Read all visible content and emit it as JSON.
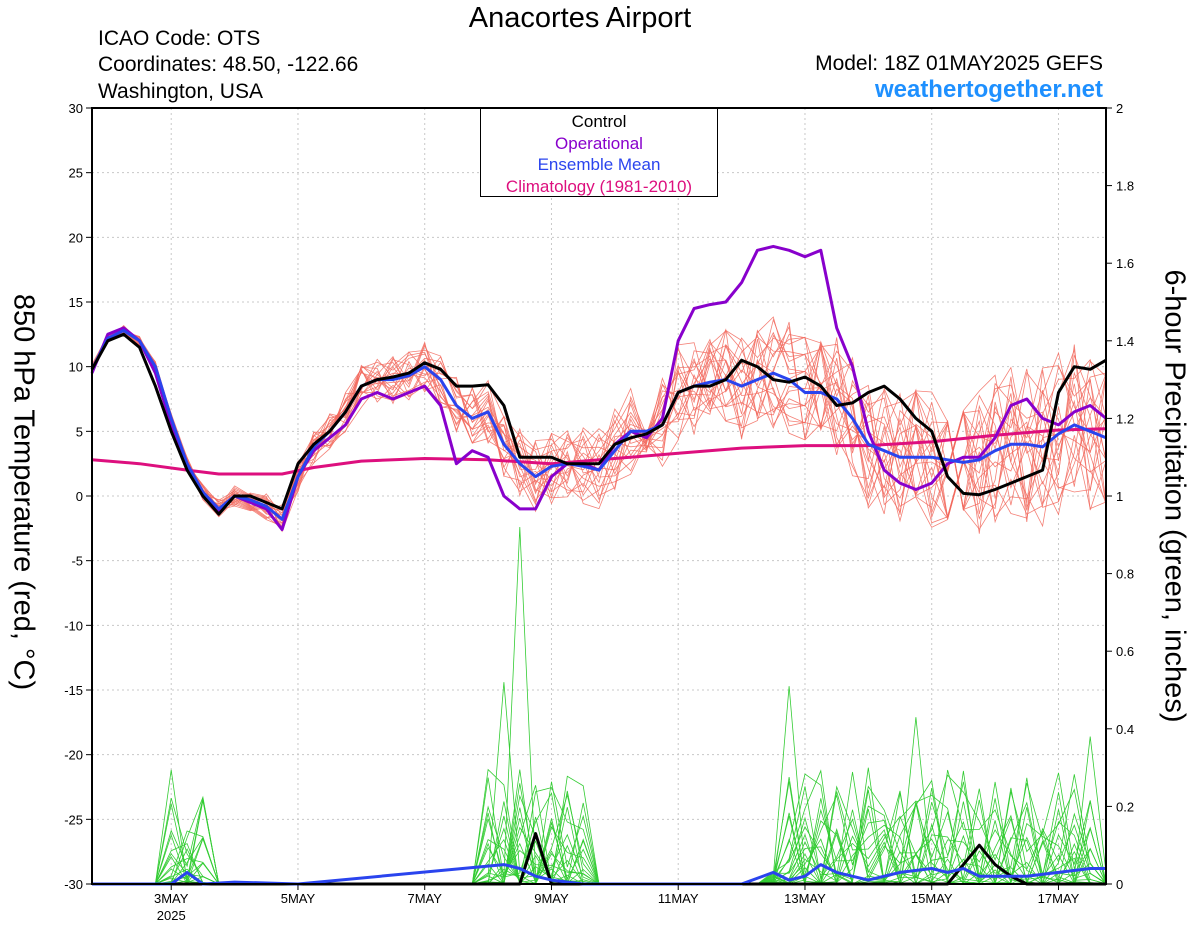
{
  "header": {
    "title": "Anacortes Airport",
    "icao": "ICAO Code: OTS",
    "coordinates": "Coordinates: 48.50, -122.66",
    "region": "Washington, USA",
    "model": "Model: 18Z 01MAY2025 GEFS",
    "site": "weathertogether.net"
  },
  "legend": {
    "items": [
      {
        "label": "Control",
        "color": "#000000"
      },
      {
        "label": "Operational",
        "color": "#8800cc"
      },
      {
        "label": "Ensemble Mean",
        "color": "#2a44ee"
      },
      {
        "label": "Climatology (1981-2010)",
        "color": "#dd0f7e"
      }
    ]
  },
  "chart_data": {
    "type": "line",
    "x_unit": "day of May 2025 (18Z May 1 start, 6-hourly)",
    "xlim": [
      1.75,
      17.75
    ],
    "x_ticks": [
      {
        "x": 3,
        "label": "3MAY",
        "sub": "2025"
      },
      {
        "x": 5,
        "label": "5MAY"
      },
      {
        "x": 7,
        "label": "7MAY"
      },
      {
        "x": 9,
        "label": "9MAY"
      },
      {
        "x": 11,
        "label": "11MAY"
      },
      {
        "x": 13,
        "label": "13MAY"
      },
      {
        "x": 15,
        "label": "15MAY"
      },
      {
        "x": 17,
        "label": "17MAY"
      }
    ],
    "y_left": {
      "label": "850 hPa Temperature (red, °C)",
      "lim": [
        -30,
        30
      ],
      "ticks": [
        30,
        25,
        20,
        15,
        10,
        5,
        0,
        -5,
        -10,
        -15,
        -20,
        -25,
        -30
      ]
    },
    "y_right": {
      "label": "6-hour Precipitation (green, inches)",
      "lim": [
        0,
        2
      ],
      "ticks": [
        "2",
        "1.8",
        "1.6",
        "1.4",
        "1.2",
        "1",
        "0.8",
        "0.6",
        "0.4",
        "0.2",
        "0"
      ]
    },
    "grid": true,
    "colors": {
      "members_temp": "#f26a5e",
      "members_precip": "#33cc33"
    },
    "series": [
      {
        "name": "Operational",
        "axis": "left",
        "color": "#8800cc",
        "points": [
          [
            1.75,
            9.5
          ],
          [
            2,
            12.5
          ],
          [
            2.25,
            13
          ],
          [
            2.5,
            12
          ],
          [
            2.75,
            9.5
          ],
          [
            3,
            5.5
          ],
          [
            3.25,
            2.5
          ],
          [
            3.5,
            0
          ],
          [
            3.75,
            -1.2
          ],
          [
            4,
            0
          ],
          [
            4.25,
            -0.5
          ],
          [
            4.5,
            -1
          ],
          [
            4.75,
            -2.6
          ],
          [
            5,
            1.5
          ],
          [
            5.25,
            3.5
          ],
          [
            5.5,
            4.5
          ],
          [
            5.75,
            5.5
          ],
          [
            6,
            7.5
          ],
          [
            6.25,
            8
          ],
          [
            6.5,
            7.5
          ],
          [
            6.75,
            8
          ],
          [
            7,
            8.5
          ],
          [
            7.25,
            7
          ],
          [
            7.5,
            2.5
          ],
          [
            7.75,
            3.5
          ],
          [
            8,
            3
          ],
          [
            8.25,
            0
          ],
          [
            8.5,
            -1
          ],
          [
            8.75,
            -1
          ],
          [
            9,
            1.5
          ],
          [
            9.25,
            2.5
          ],
          [
            9.5,
            2.5
          ],
          [
            9.75,
            2
          ],
          [
            10,
            4
          ],
          [
            10.25,
            5
          ],
          [
            10.5,
            4.5
          ],
          [
            10.75,
            6
          ],
          [
            11,
            12
          ],
          [
            11.25,
            14.5
          ],
          [
            11.5,
            14.8
          ],
          [
            11.75,
            15
          ],
          [
            12,
            16.5
          ],
          [
            12.25,
            19
          ],
          [
            12.5,
            19.3
          ],
          [
            12.75,
            19
          ],
          [
            13,
            18.5
          ],
          [
            13.25,
            19
          ],
          [
            13.5,
            13
          ],
          [
            13.75,
            10
          ],
          [
            14,
            5
          ],
          [
            14.25,
            2
          ],
          [
            14.5,
            1
          ],
          [
            14.75,
            0.5
          ],
          [
            15,
            1
          ],
          [
            15.25,
            2.5
          ],
          [
            15.5,
            3
          ],
          [
            15.75,
            3
          ],
          [
            16,
            4.5
          ],
          [
            16.25,
            7
          ],
          [
            16.5,
            7.5
          ],
          [
            16.75,
            6
          ],
          [
            17,
            5.5
          ],
          [
            17.25,
            6.5
          ],
          [
            17.5,
            7
          ],
          [
            17.75,
            6
          ]
        ]
      },
      {
        "name": "Ensemble Mean",
        "axis": "left",
        "color": "#2a44ee",
        "points": [
          [
            1.75,
            9.8
          ],
          [
            2,
            12.2
          ],
          [
            2.25,
            12.8
          ],
          [
            2.5,
            12
          ],
          [
            2.75,
            10
          ],
          [
            3,
            6
          ],
          [
            3.25,
            2.5
          ],
          [
            3.5,
            0.3
          ],
          [
            3.75,
            -1
          ],
          [
            4,
            0
          ],
          [
            4.25,
            -0.3
          ],
          [
            4.5,
            -0.8
          ],
          [
            4.75,
            -1.8
          ],
          [
            5,
            1.5
          ],
          [
            5.25,
            3.8
          ],
          [
            5.5,
            5
          ],
          [
            5.75,
            6.5
          ],
          [
            6,
            8.5
          ],
          [
            6.25,
            9
          ],
          [
            6.5,
            9
          ],
          [
            6.75,
            9.3
          ],
          [
            7,
            10
          ],
          [
            7.25,
            9
          ],
          [
            7.5,
            7
          ],
          [
            7.75,
            6
          ],
          [
            8,
            6.5
          ],
          [
            8.25,
            4
          ],
          [
            8.5,
            2.5
          ],
          [
            8.75,
            1.5
          ],
          [
            9,
            2.3
          ],
          [
            9.25,
            2.5
          ],
          [
            9.5,
            2.3
          ],
          [
            9.75,
            2
          ],
          [
            10,
            3.5
          ],
          [
            10.25,
            5
          ],
          [
            10.5,
            5
          ],
          [
            10.75,
            5.5
          ],
          [
            11,
            8
          ],
          [
            11.25,
            8.5
          ],
          [
            11.5,
            8.8
          ],
          [
            11.75,
            9
          ],
          [
            12,
            8.5
          ],
          [
            12.25,
            9
          ],
          [
            12.5,
            9.5
          ],
          [
            12.75,
            9
          ],
          [
            13,
            8
          ],
          [
            13.25,
            8
          ],
          [
            13.5,
            7.5
          ],
          [
            13.75,
            6
          ],
          [
            14,
            4
          ],
          [
            14.25,
            3.5
          ],
          [
            14.5,
            3
          ],
          [
            14.75,
            3
          ],
          [
            15,
            3
          ],
          [
            15.25,
            2.8
          ],
          [
            15.5,
            2.6
          ],
          [
            15.75,
            2.8
          ],
          [
            16,
            3.5
          ],
          [
            16.25,
            4
          ],
          [
            16.5,
            4
          ],
          [
            16.75,
            3.8
          ],
          [
            17,
            4.8
          ],
          [
            17.25,
            5.5
          ],
          [
            17.5,
            5
          ],
          [
            17.75,
            4.5
          ]
        ]
      },
      {
        "name": "Control",
        "axis": "left",
        "color": "#000000",
        "points": [
          [
            1.75,
            9.8
          ],
          [
            2,
            12
          ],
          [
            2.25,
            12.5
          ],
          [
            2.5,
            11.5
          ],
          [
            2.75,
            8.5
          ],
          [
            3,
            5
          ],
          [
            3.25,
            2
          ],
          [
            3.5,
            0
          ],
          [
            3.75,
            -1.4
          ],
          [
            4,
            0
          ],
          [
            4.25,
            0
          ],
          [
            4.5,
            -0.5
          ],
          [
            4.75,
            -1
          ],
          [
            5,
            2.5
          ],
          [
            5.25,
            4
          ],
          [
            5.5,
            5
          ],
          [
            5.75,
            6.5
          ],
          [
            6,
            8.5
          ],
          [
            6.25,
            9
          ],
          [
            6.5,
            9.2
          ],
          [
            6.75,
            9.5
          ],
          [
            7,
            10.3
          ],
          [
            7.25,
            9.8
          ],
          [
            7.5,
            8.5
          ],
          [
            7.75,
            8.5
          ],
          [
            8,
            8.6
          ],
          [
            8.25,
            7
          ],
          [
            8.5,
            3
          ],
          [
            8.75,
            3
          ],
          [
            9,
            3
          ],
          [
            9.25,
            2.5
          ],
          [
            9.5,
            2.5
          ],
          [
            9.75,
            2.5
          ],
          [
            10,
            4
          ],
          [
            10.25,
            4.5
          ],
          [
            10.5,
            4.8
          ],
          [
            10.75,
            5.5
          ],
          [
            11,
            8
          ],
          [
            11.25,
            8.5
          ],
          [
            11.5,
            8.5
          ],
          [
            11.75,
            9
          ],
          [
            12,
            10.5
          ],
          [
            12.25,
            10
          ],
          [
            12.5,
            9
          ],
          [
            12.75,
            8.8
          ],
          [
            13,
            9.2
          ],
          [
            13.25,
            8.5
          ],
          [
            13.5,
            7
          ],
          [
            13.75,
            7.2
          ],
          [
            14,
            8
          ],
          [
            14.25,
            8.5
          ],
          [
            14.5,
            7.5
          ],
          [
            14.75,
            6
          ],
          [
            15,
            5
          ],
          [
            15.25,
            1.5
          ],
          [
            15.5,
            0.2
          ],
          [
            15.75,
            0.1
          ],
          [
            16,
            0.5
          ],
          [
            16.25,
            1
          ],
          [
            16.5,
            1.5
          ],
          [
            16.75,
            2
          ],
          [
            17,
            8
          ],
          [
            17.25,
            10
          ],
          [
            17.5,
            9.8
          ],
          [
            17.75,
            10.5
          ]
        ]
      },
      {
        "name": "Climatology (1981-2010)",
        "axis": "left",
        "color": "#dd0f7e",
        "points": [
          [
            1.75,
            2.8
          ],
          [
            2.5,
            2.5
          ],
          [
            3.25,
            2
          ],
          [
            3.75,
            1.7
          ],
          [
            4.75,
            1.7
          ],
          [
            5.25,
            2.2
          ],
          [
            6,
            2.7
          ],
          [
            7,
            2.9
          ],
          [
            8,
            2.8
          ],
          [
            9,
            2.5
          ],
          [
            10,
            2.9
          ],
          [
            11,
            3.3
          ],
          [
            12,
            3.7
          ],
          [
            13,
            3.9
          ],
          [
            14,
            3.9
          ],
          [
            15,
            4.2
          ],
          [
            16,
            4.7
          ],
          [
            17,
            5.1
          ],
          [
            17.75,
            5.2
          ]
        ]
      },
      {
        "name": "Control",
        "axis": "right",
        "kind": "precip",
        "color": "#000000",
        "points": [
          [
            1.75,
            0
          ],
          [
            8.5,
            0
          ],
          [
            8.75,
            0.13
          ],
          [
            9,
            0
          ],
          [
            15.25,
            0
          ],
          [
            15.5,
            0.05
          ],
          [
            15.75,
            0.1
          ],
          [
            16,
            0.05
          ],
          [
            16.25,
            0.02
          ],
          [
            16.5,
            0
          ],
          [
            17.75,
            0
          ]
        ]
      },
      {
        "name": "Ensemble Mean",
        "axis": "right",
        "kind": "precip",
        "color": "#2a44ee",
        "points": [
          [
            1.75,
            0
          ],
          [
            3,
            0
          ],
          [
            3.25,
            0.03
          ],
          [
            3.5,
            0
          ],
          [
            4,
            0.005
          ],
          [
            5,
            0
          ],
          [
            8.25,
            0.05
          ],
          [
            8.5,
            0.04
          ],
          [
            8.75,
            0.02
          ],
          [
            9,
            0.01
          ],
          [
            9.5,
            0
          ],
          [
            10,
            0
          ],
          [
            11.5,
            0
          ],
          [
            12,
            0
          ],
          [
            12.5,
            0.03
          ],
          [
            12.75,
            0.01
          ],
          [
            13,
            0.02
          ],
          [
            13.25,
            0.05
          ],
          [
            13.5,
            0.03
          ],
          [
            14,
            0.01
          ],
          [
            14.5,
            0.03
          ],
          [
            15,
            0.04
          ],
          [
            15.25,
            0.03
          ],
          [
            15.5,
            0.04
          ],
          [
            15.75,
            0.02
          ],
          [
            16,
            0.02
          ],
          [
            16.5,
            0.02
          ],
          [
            17,
            0.03
          ],
          [
            17.5,
            0.04
          ],
          [
            17.75,
            0.04
          ]
        ]
      }
    ]
  }
}
